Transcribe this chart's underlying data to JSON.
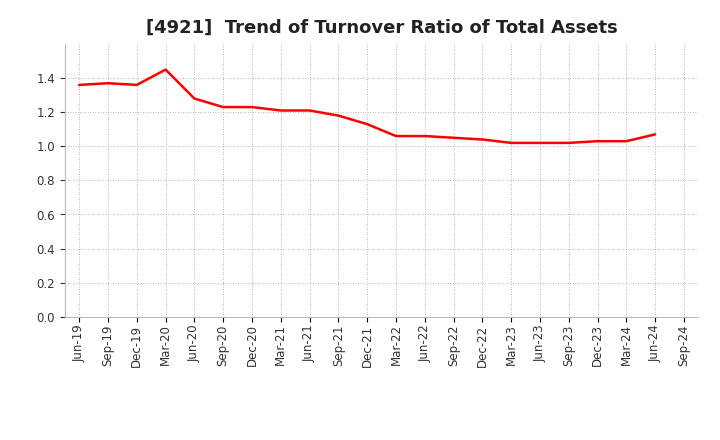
{
  "title": "[4921]  Trend of Turnover Ratio of Total Assets",
  "line_color": "#ff0000",
  "line_width": 1.8,
  "background_color": "#ffffff",
  "grid_color": "#888888",
  "ylim": [
    0.0,
    1.6
  ],
  "yticks": [
    0.0,
    0.2,
    0.4,
    0.6,
    0.8,
    1.0,
    1.2,
    1.4
  ],
  "x_labels": [
    "Jun-19",
    "Sep-19",
    "Dec-19",
    "Mar-20",
    "Jun-20",
    "Sep-20",
    "Dec-20",
    "Mar-21",
    "Jun-21",
    "Sep-21",
    "Dec-21",
    "Mar-22",
    "Jun-22",
    "Sep-22",
    "Dec-22",
    "Mar-23",
    "Jun-23",
    "Sep-23",
    "Dec-23",
    "Mar-24",
    "Jun-24",
    "Sep-24"
  ],
  "values": [
    1.36,
    1.37,
    1.36,
    1.45,
    1.28,
    1.23,
    1.23,
    1.21,
    1.21,
    1.18,
    1.13,
    1.06,
    1.06,
    1.05,
    1.04,
    1.02,
    1.02,
    1.02,
    1.03,
    1.03,
    1.07,
    null
  ],
  "title_fontsize": 13,
  "tick_fontsize": 8.5,
  "title_color": "#222222"
}
